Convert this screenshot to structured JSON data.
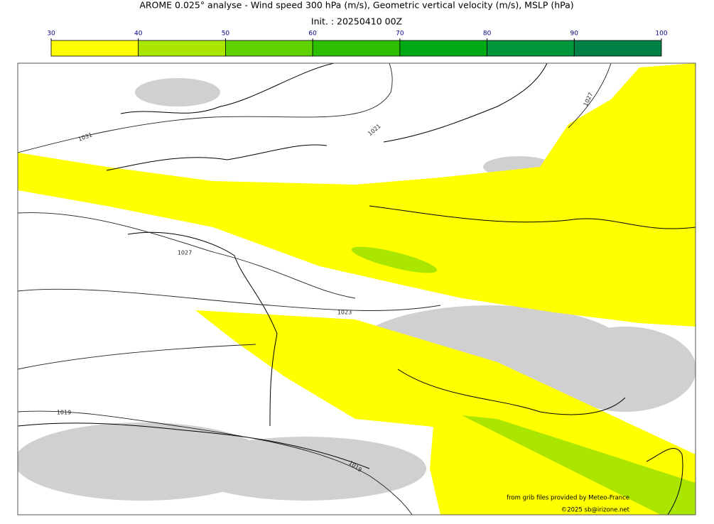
{
  "header": {
    "title": "AROME 0.025° analyse - Wind speed 300 hPa (m/s), Geometric vertical velocity (m/s), MSLP (hPa)",
    "init": "Init. : 20250410 00Z"
  },
  "colorbar": {
    "ticks": [
      30,
      40,
      50,
      60,
      70,
      80,
      90,
      100
    ],
    "colors": [
      "#ffff00",
      "#aae600",
      "#5fd200",
      "#2dbe00",
      "#00aa14",
      "#00963c",
      "#008246"
    ]
  },
  "isobar_labels": [
    "1031",
    "1027",
    "1027",
    "1023",
    "1021",
    "1019",
    "1019"
  ],
  "credits": [
    "from grib files provided by Meteo-France",
    "©2025 sb@irizone.net"
  ]
}
